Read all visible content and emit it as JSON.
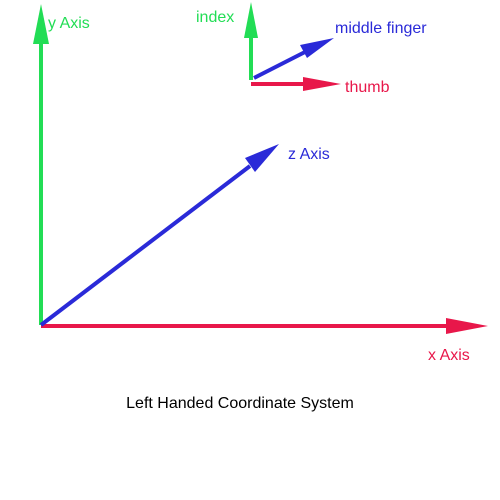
{
  "axes": {
    "y": "y Axis",
    "x": "x Axis",
    "z": "z Axis"
  },
  "hand": {
    "index": "index",
    "middle_finger": "middle finger",
    "thumb": "thumb"
  },
  "caption": "Left Handed Coordinate System"
}
